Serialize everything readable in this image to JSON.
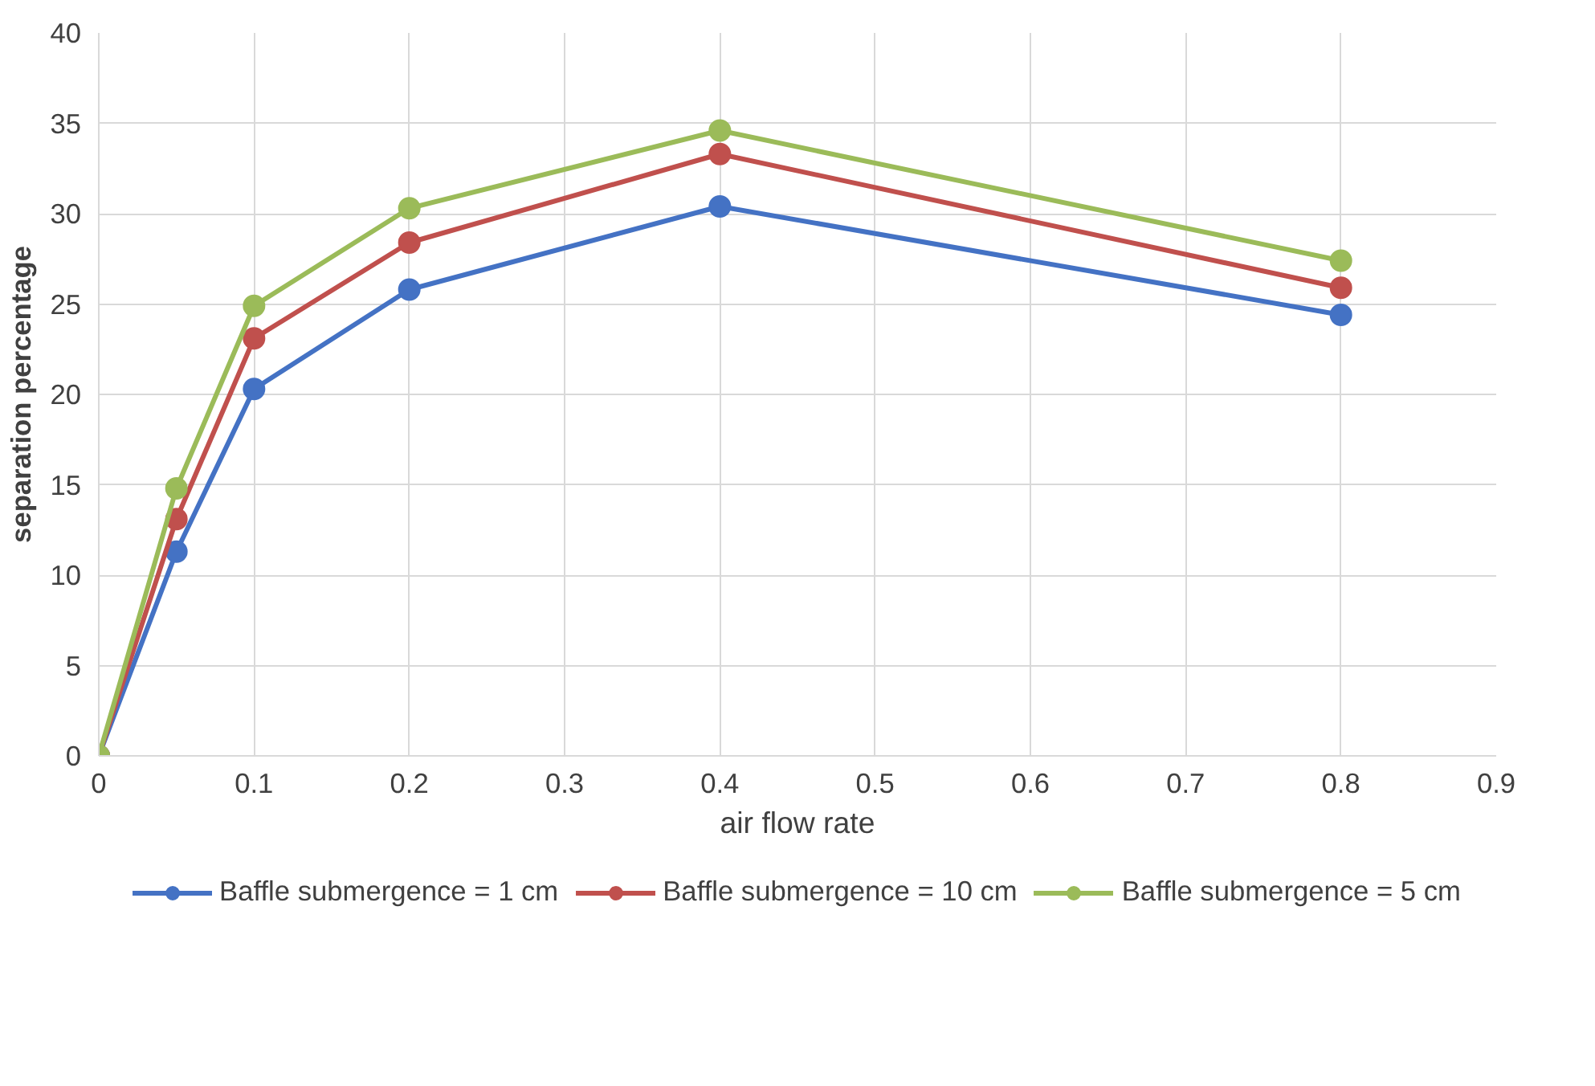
{
  "chart_data": {
    "type": "line",
    "xlabel": "air flow rate",
    "ylabel": "separation percentage",
    "x": [
      0,
      0.05,
      0.1,
      0.2,
      0.4,
      0.8
    ],
    "series": [
      {
        "name": "Baffle submergence = 1 cm",
        "color": "#4472c4",
        "values": [
          0,
          11.3,
          20.3,
          25.8,
          30.4,
          24.4
        ]
      },
      {
        "name": "Baffle submergence = 10 cm",
        "color": "#c0504d",
        "values": [
          0,
          13.1,
          23.1,
          28.4,
          33.3,
          25.9
        ]
      },
      {
        "name": "Baffle submergence = 5 cm",
        "color": "#9bbb59",
        "values": [
          0,
          14.8,
          24.9,
          30.3,
          34.6,
          27.4
        ]
      }
    ],
    "xlim": [
      0,
      0.9
    ],
    "xticks": [
      0,
      0.1,
      0.2,
      0.3,
      0.4,
      0.5,
      0.6,
      0.7,
      0.8,
      0.9
    ],
    "ylim": [
      0,
      40
    ],
    "yticks": [
      0,
      5,
      10,
      15,
      20,
      25,
      30,
      35,
      40
    ],
    "grid": true,
    "legend": "bottom",
    "marker": "circle",
    "line_style": "solid"
  }
}
